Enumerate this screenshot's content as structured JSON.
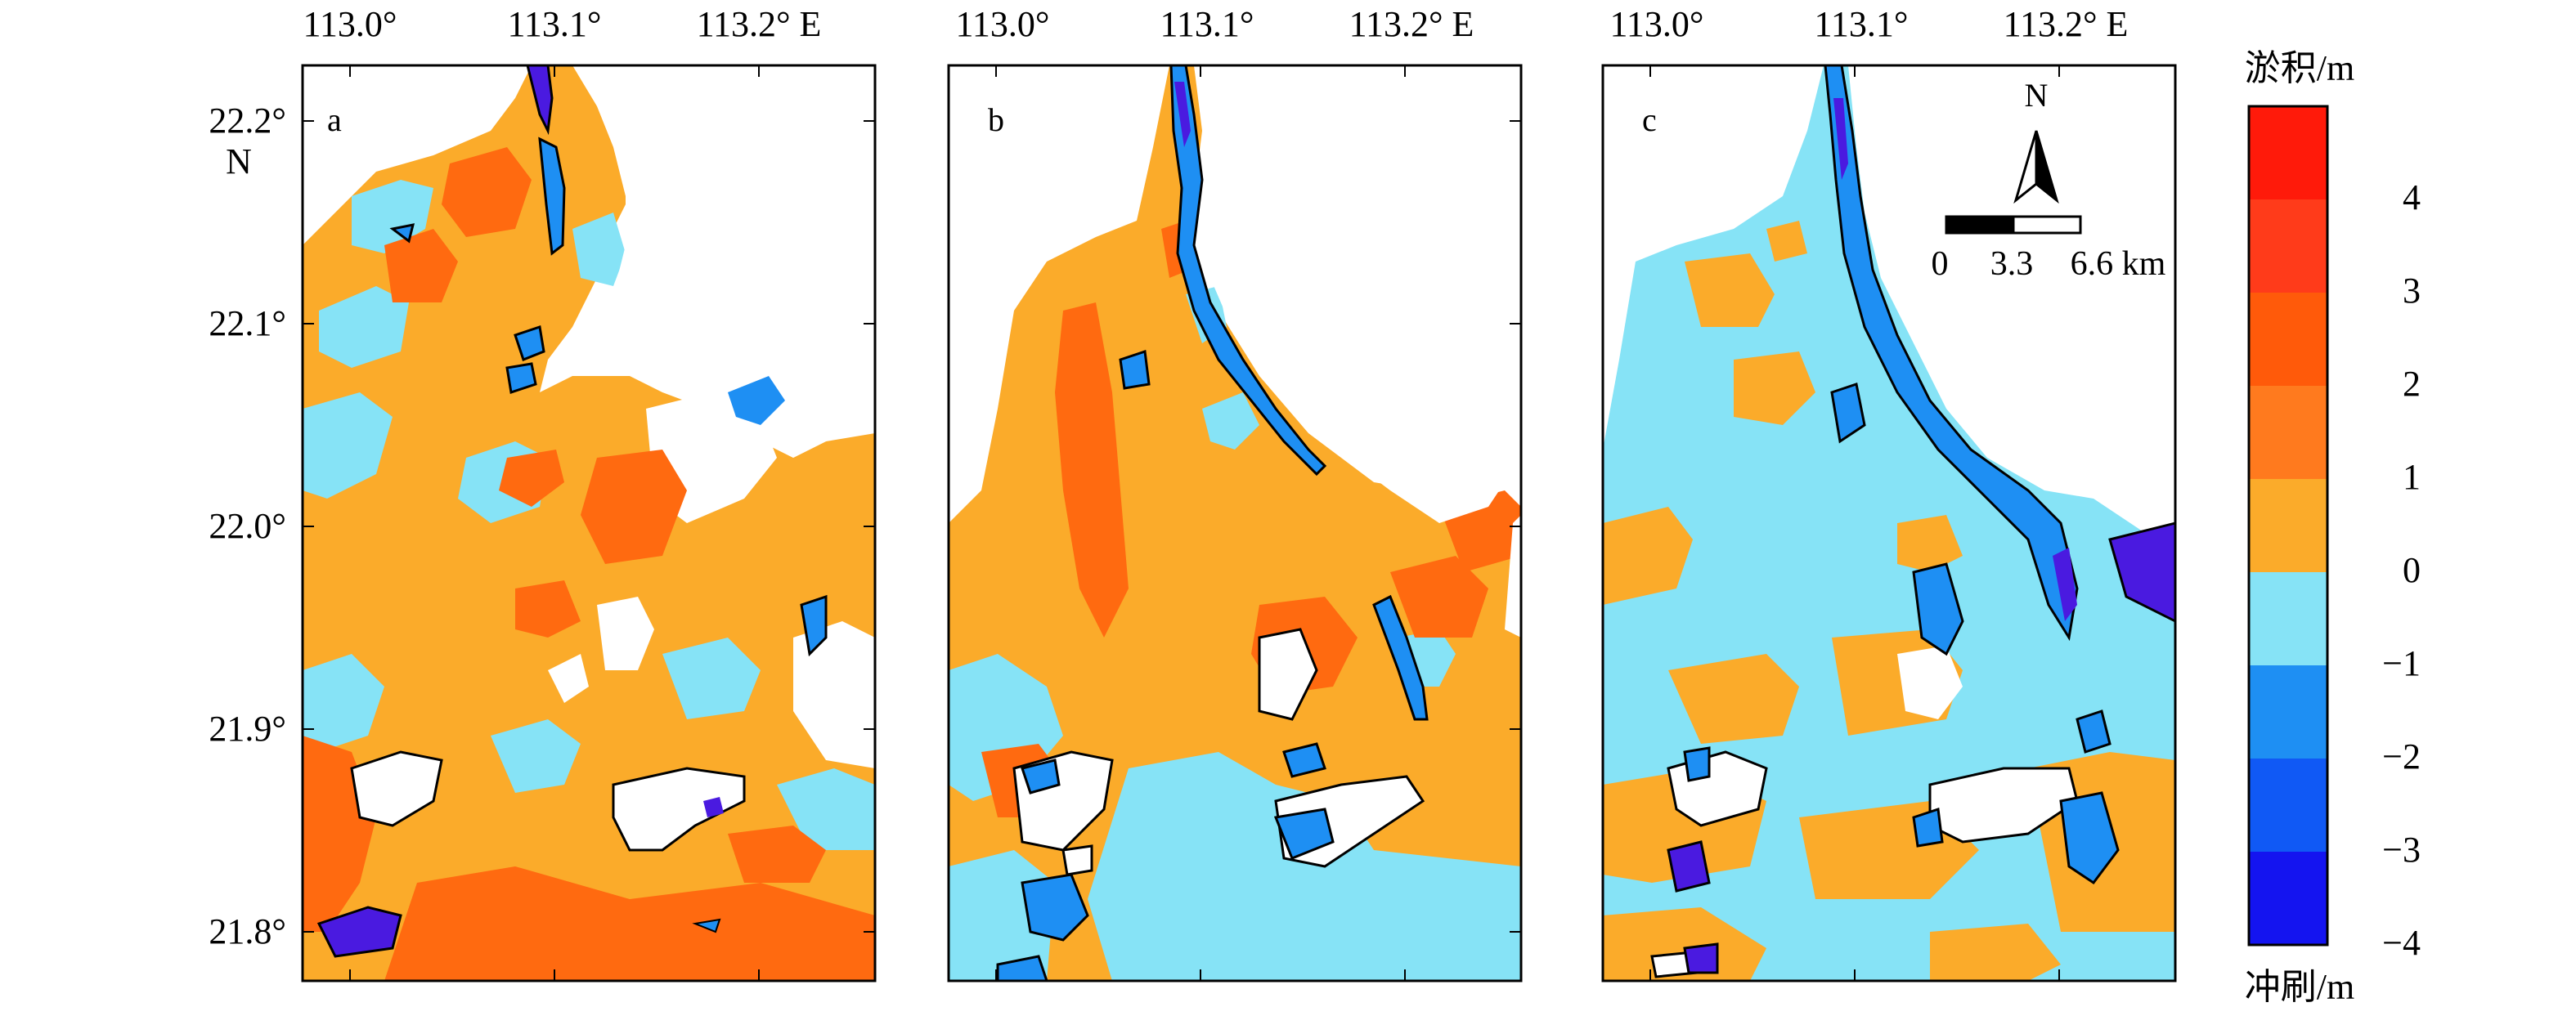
{
  "figure": {
    "panels": [
      {
        "id": "a",
        "label": "a"
      },
      {
        "id": "b",
        "label": "b"
      },
      {
        "id": "c",
        "label": "c"
      }
    ],
    "x_ticks": [
      "113.0°",
      "113.1°",
      "113.2° E"
    ],
    "y_ticks": [
      "22.2°",
      "22.1°",
      "22.0°",
      "21.9°",
      "21.8°"
    ],
    "y_unit_label": "N",
    "north_arrow_label": "N",
    "scale_bar": {
      "labels": [
        "0",
        "3.3",
        "6.6 km"
      ]
    },
    "colorbar": {
      "title_top": "淤积/m",
      "title_bottom": "冲刷/m",
      "tick_labels": [
        "4",
        "3",
        "2",
        "1",
        "0",
        "−1",
        "−2",
        "−3",
        "−4"
      ],
      "levels": [
        {
          "range": [
            4,
            5
          ],
          "color": "#ff1a0a"
        },
        {
          "range": [
            3,
            4
          ],
          "color": "#ff3b1a"
        },
        {
          "range": [
            2,
            3
          ],
          "color": "#ff5a0a"
        },
        {
          "range": [
            1,
            2
          ],
          "color": "#ff7a1e"
        },
        {
          "range": [
            0,
            1
          ],
          "color": "#fbab2a"
        },
        {
          "range": [
            -1,
            0
          ],
          "color": "#86e3f6"
        },
        {
          "range": [
            -2,
            -1
          ],
          "color": "#1e8ff3"
        },
        {
          "range": [
            -3,
            -2
          ],
          "color": "#1059f5"
        },
        {
          "range": [
            -4,
            -3
          ],
          "color": "#1414f0"
        }
      ]
    },
    "colors": {
      "land": "#ffffff",
      "deposit_0_1": "#fbab2a",
      "deposit_1_2": "#ff6a10",
      "erosion_0_1": "#86e3f6",
      "erosion_1_2": "#1e8ff3",
      "erosion_3_4": "#4a1ae0",
      "frame": "#000000"
    }
  }
}
